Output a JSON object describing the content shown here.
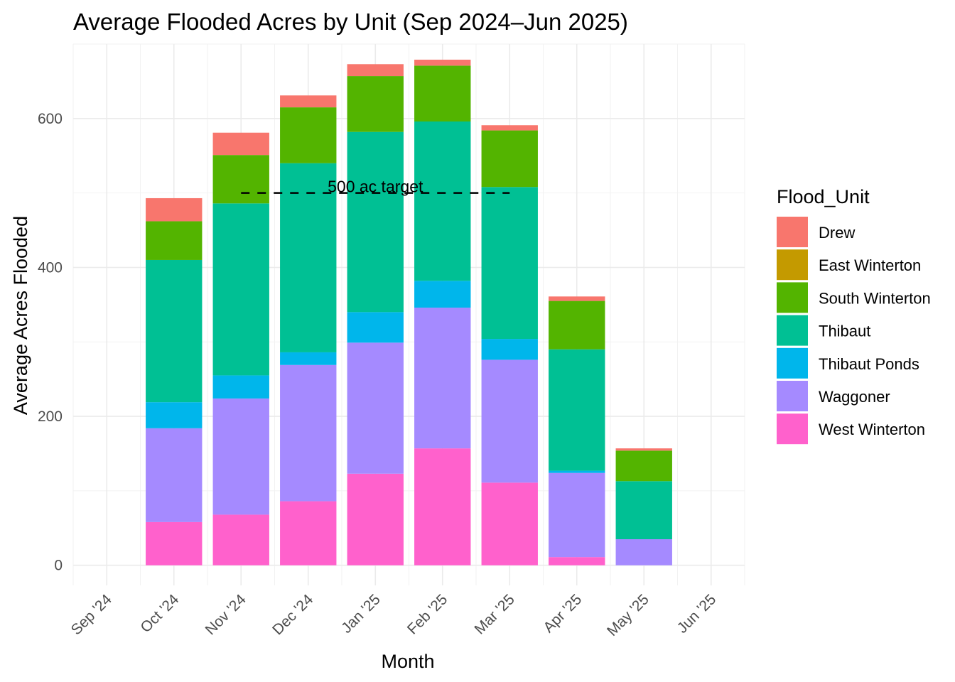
{
  "chart_data": {
    "type": "bar",
    "stacked": true,
    "title": "Average Flooded Acres by Unit (Sep 2024–Jun 2025)",
    "xlabel": "Month",
    "ylabel": "Average Acres Flooded",
    "categories": [
      "Sep '24",
      "Oct '24",
      "Nov '24",
      "Dec '24",
      "Jan '25",
      "Feb '25",
      "Mar '25",
      "Apr '25",
      "May '25",
      "Jun '25"
    ],
    "ylim": [
      -27,
      700
    ],
    "yticks": [
      0,
      200,
      400,
      600
    ],
    "grid": true,
    "legend": {
      "title": "Flood_Unit",
      "position": "right"
    },
    "series": [
      {
        "name": "West Winterton",
        "color": "#FF61CC",
        "values": [
          0,
          58,
          68,
          86,
          123,
          157,
          111,
          11,
          0,
          0
        ]
      },
      {
        "name": "Waggoner",
        "color": "#A58AFF",
        "values": [
          0,
          126,
          156,
          183,
          176,
          189,
          165,
          113,
          35,
          0
        ]
      },
      {
        "name": "Thibaut Ponds",
        "color": "#00B6EB",
        "values": [
          0,
          35,
          31,
          17,
          41,
          36,
          28,
          3,
          0,
          0
        ]
      },
      {
        "name": "Thibaut",
        "color": "#00C094",
        "values": [
          0,
          191,
          231,
          254,
          242,
          214,
          204,
          163,
          78,
          0
        ]
      },
      {
        "name": "South Winterton",
        "color": "#53B400",
        "values": [
          0,
          52,
          65,
          75,
          75,
          75,
          76,
          65,
          41,
          0
        ]
      },
      {
        "name": "East Winterton",
        "color": "#C49A00",
        "values": [
          0,
          0,
          0,
          0,
          0,
          0,
          0,
          0,
          0,
          0
        ]
      },
      {
        "name": "Drew",
        "color": "#F8766D",
        "values": [
          0,
          31,
          30,
          16,
          16,
          8,
          7,
          6,
          3,
          0
        ]
      }
    ],
    "legend_order": [
      "Drew",
      "East Winterton",
      "South Winterton",
      "Thibaut",
      "Thibaut Ponds",
      "Waggoner",
      "West Winterton"
    ],
    "annotations": [
      {
        "type": "hline",
        "y": 500,
        "from": "Nov '24",
        "to": "Mar '25",
        "linestyle": "dashed",
        "label": "500 ac target"
      }
    ]
  }
}
